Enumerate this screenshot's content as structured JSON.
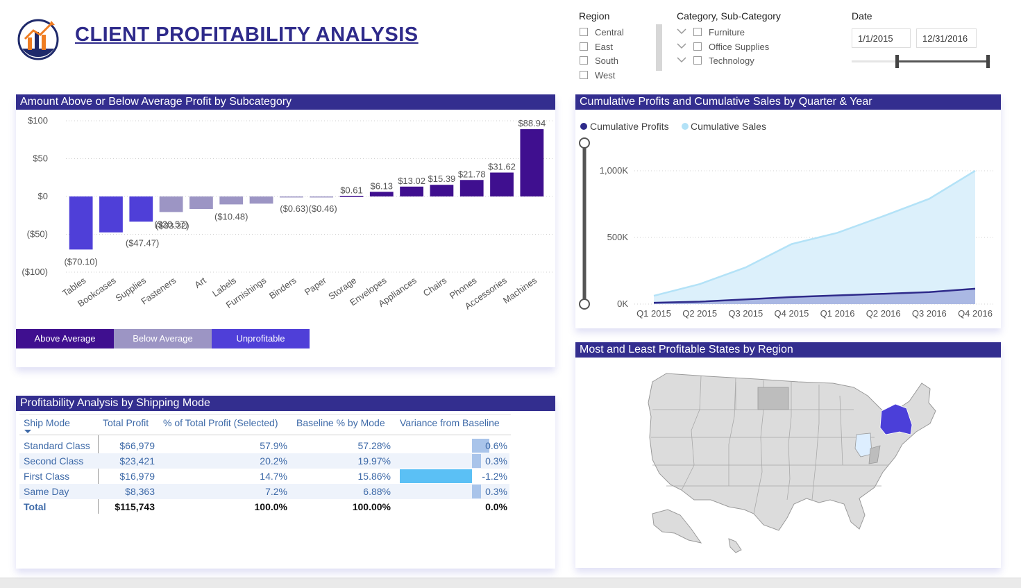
{
  "title": "CLIENT PROFITABILITY ANALYSIS",
  "logo": "analytics-logo",
  "slicers": {
    "region": {
      "title": "Region",
      "items": [
        "Central",
        "East",
        "South",
        "West"
      ]
    },
    "category": {
      "title": "Category, Sub-Category",
      "items": [
        "Furniture",
        "Office Supplies",
        "Technology"
      ]
    },
    "date": {
      "title": "Date",
      "start": "1/1/2015",
      "end": "12/31/2016"
    }
  },
  "bar_panel": {
    "title": "Amount Above or Below Average Profit by Subcategory"
  },
  "line_panel": {
    "title": "Cumulative Profits and Cumulative Sales by Quarter & Year"
  },
  "map_panel": {
    "title": "Most and Least Profitable States by Region"
  },
  "table_panel": {
    "title": "Profitability Analysis by Shipping Mode",
    "headers": [
      "Ship Mode",
      "Total Profit",
      "% of Total Profit (Selected)",
      "Baseline % by Mode",
      "Variance from Baseline"
    ],
    "rows": [
      {
        "mode": "Standard Class",
        "profit": "$66,979",
        "pct": "57.9%",
        "baseline": "57.28%",
        "variance": "0.6%",
        "variance_value": 0.6
      },
      {
        "mode": "Second Class",
        "profit": "$23,421",
        "pct": "20.2%",
        "baseline": "19.97%",
        "variance": "0.3%",
        "variance_value": 0.3
      },
      {
        "mode": "First Class",
        "profit": "$16,979",
        "pct": "14.7%",
        "baseline": "15.86%",
        "variance": "-1.2%",
        "variance_value": -1.2
      },
      {
        "mode": "Same Day",
        "profit": "$8,363",
        "pct": "7.2%",
        "baseline": "6.88%",
        "variance": "0.3%",
        "variance_value": 0.3
      }
    ],
    "total": {
      "mode": "Total",
      "profit": "$115,743",
      "pct": "100.0%",
      "baseline": "100.00%",
      "variance": "0.0%"
    }
  },
  "colors": {
    "above_average": "#3f0f8f",
    "below_average": "#9c95c4",
    "unprofitable": "#4f3fd8",
    "header": "#332e8f",
    "cumulative_profits": "#2e2a8a",
    "cumulative_sales": "#b3e2f7"
  },
  "chart_data": [
    {
      "type": "bar",
      "categories": [
        "Tables",
        "Bookcases",
        "Supplies",
        "Fasteners",
        "Art",
        "Labels",
        "Furnishings",
        "Binders",
        "Paper",
        "Storage",
        "Envelopes",
        "Appliances",
        "Chairs",
        "Phones",
        "Accessories",
        "Machines"
      ],
      "values": [
        -70.1,
        -47.47,
        -33.32,
        -20.57,
        -16.5,
        -10.48,
        -9.5,
        -0.63,
        -0.46,
        0.61,
        6.13,
        13.02,
        15.39,
        21.78,
        31.62,
        88.94
      ],
      "groups": [
        "Unprofitable",
        "Unprofitable",
        "Unprofitable",
        "Below Average",
        "Below Average",
        "Below Average",
        "Below Average",
        "Below Average",
        "Below Average",
        "Above Average",
        "Above Average",
        "Above Average",
        "Above Average",
        "Above Average",
        "Above Average",
        "Above Average"
      ],
      "data_labels": [
        "($70.10)",
        "($47.47)",
        "($33.32)",
        "($20.57)",
        "",
        "($10.48)",
        "",
        "($0.63)",
        "($0.46)",
        "$0.61",
        "$6.13",
        "$13.02",
        "$15.39",
        "$21.78",
        "$31.62",
        "$88.94"
      ],
      "y_ticks": [
        "$100",
        "$50",
        "$0",
        "($50)",
        "($100)"
      ],
      "ylim": [
        -100,
        100
      ],
      "legend": [
        "Above Average",
        "Below Average",
        "Unprofitable"
      ],
      "legend_position": "bottom",
      "grid": true
    },
    {
      "type": "area",
      "categories": [
        "Q1 2015",
        "Q2 2015",
        "Q3 2015",
        "Q4 2015",
        "Q1 2016",
        "Q2 2016",
        "Q3 2016",
        "Q4 2016"
      ],
      "series": [
        {
          "name": "Cumulative Profits",
          "values": [
            10000,
            18000,
            35000,
            53000,
            65000,
            77000,
            90000,
            115000
          ]
        },
        {
          "name": "Cumulative Sales",
          "values": [
            62000,
            150000,
            275000,
            450000,
            535000,
            660000,
            790000,
            1000000
          ]
        }
      ],
      "y_ticks": [
        "1,000K",
        "500K",
        "0K"
      ],
      "ylim": [
        0,
        1000000
      ],
      "legend_position": "top-left",
      "grid": true
    }
  ]
}
